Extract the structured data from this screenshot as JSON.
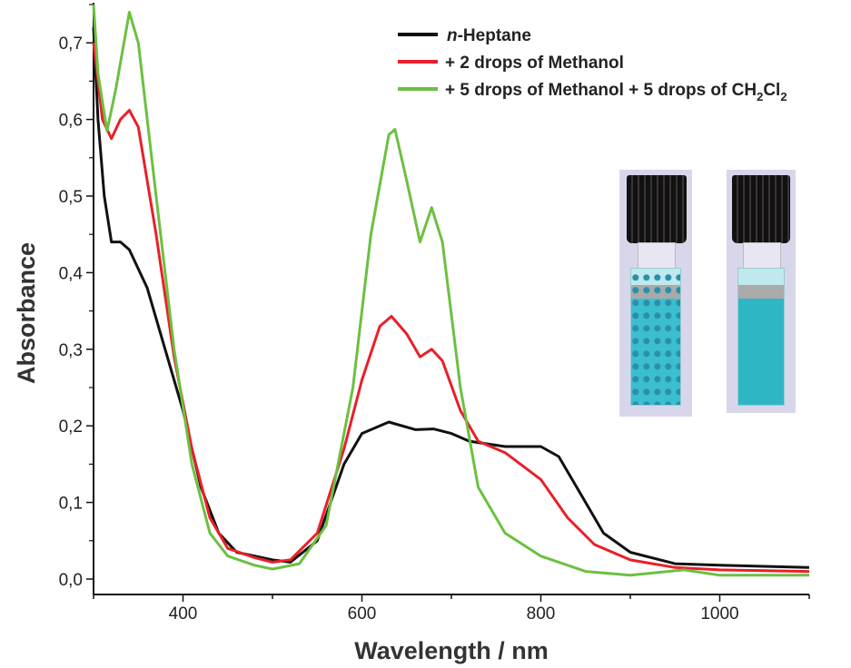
{
  "chart_data": {
    "type": "line",
    "xlabel": "Wavelength / nm",
    "ylabel": "Absorbance",
    "xlim": [
      300,
      1100
    ],
    "ylim": [
      0,
      0.75
    ],
    "xticks": [
      400,
      600,
      800,
      1000
    ],
    "yticks": [
      0,
      0.1,
      0.2,
      0.3,
      0.4,
      0.5,
      0.6,
      0.7
    ],
    "ytick_labels": [
      "0,0",
      "0,1",
      "0,2",
      "0,3",
      "0,4",
      "0,5",
      "0,6",
      "0,7"
    ],
    "legend_position": "top-right",
    "series": [
      {
        "name": "n-Heptane",
        "name_italic": "n",
        "name_rest": "-Heptane",
        "color": "#111111",
        "x": [
          300,
          305,
          312,
          320,
          330,
          340,
          360,
          380,
          400,
          420,
          440,
          460,
          500,
          520,
          550,
          580,
          600,
          630,
          660,
          680,
          700,
          720,
          760,
          800,
          820,
          850,
          870,
          900,
          950,
          1000,
          1100
        ],
        "y": [
          0.72,
          0.6,
          0.5,
          0.44,
          0.44,
          0.43,
          0.38,
          0.3,
          0.22,
          0.12,
          0.06,
          0.035,
          0.025,
          0.022,
          0.05,
          0.15,
          0.19,
          0.205,
          0.195,
          0.196,
          0.19,
          0.18,
          0.173,
          0.173,
          0.16,
          0.1,
          0.06,
          0.035,
          0.02,
          0.018,
          0.015
        ]
      },
      {
        "name": "+ 2 drops of Methanol",
        "color": "#e8202a",
        "x": [
          300,
          310,
          320,
          330,
          340,
          350,
          370,
          390,
          410,
          430,
          450,
          480,
          500,
          520,
          550,
          580,
          600,
          620,
          633,
          650,
          665,
          678,
          690,
          710,
          730,
          760,
          800,
          830,
          860,
          900,
          950,
          1000,
          1100
        ],
        "y": [
          0.7,
          0.6,
          0.575,
          0.6,
          0.612,
          0.59,
          0.45,
          0.29,
          0.17,
          0.08,
          0.04,
          0.028,
          0.022,
          0.025,
          0.06,
          0.17,
          0.26,
          0.33,
          0.343,
          0.32,
          0.29,
          0.3,
          0.285,
          0.22,
          0.18,
          0.165,
          0.13,
          0.08,
          0.045,
          0.025,
          0.015,
          0.012,
          0.01
        ]
      },
      {
        "name": "+ 5 drops of Methanol + 5 drops of CH2Cl2",
        "name_main": "+ 5 drops of Methanol + 5 drops of CH",
        "sub1": "2",
        "name_cl": "Cl",
        "sub2": "2",
        "color": "#6cc040",
        "x": [
          300,
          305,
          315,
          325,
          340,
          350,
          370,
          390,
          410,
          430,
          450,
          480,
          500,
          530,
          560,
          590,
          610,
          630,
          637,
          650,
          665,
          678,
          690,
          710,
          730,
          760,
          800,
          850,
          900,
          960,
          1000,
          1100
        ],
        "y": [
          0.75,
          0.66,
          0.585,
          0.64,
          0.74,
          0.7,
          0.5,
          0.3,
          0.15,
          0.06,
          0.03,
          0.018,
          0.013,
          0.02,
          0.07,
          0.25,
          0.45,
          0.58,
          0.587,
          0.52,
          0.44,
          0.485,
          0.44,
          0.25,
          0.12,
          0.06,
          0.03,
          0.01,
          0.005,
          0.012,
          0.005,
          0.005
        ]
      }
    ]
  }
}
